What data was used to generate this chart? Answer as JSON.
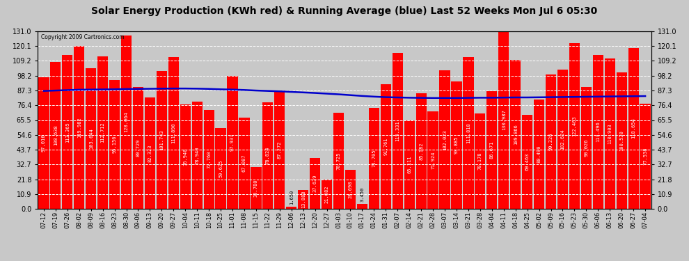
{
  "title": "Solar Energy Production (KWh red) & Running Average (blue) Last 52 Weeks Mon Jul 6 05:30",
  "copyright": "Copyright 2009 Cartronics.com",
  "bar_color": "#ff0000",
  "avg_line_color": "#0000cc",
  "background_color": "#c8c8c8",
  "plot_bg_color": "#c8c8c8",
  "grid_color": "#ffffff",
  "ylim": [
    0,
    131.0
  ],
  "yticks": [
    0.0,
    10.9,
    21.8,
    32.7,
    43.7,
    54.6,
    65.5,
    76.4,
    87.3,
    98.2,
    109.2,
    120.1,
    131.0
  ],
  "categories": [
    "07-12",
    "07-19",
    "07-26",
    "08-02",
    "08-09",
    "08-16",
    "08-23",
    "08-30",
    "09-06",
    "09-13",
    "09-20",
    "09-27",
    "10-04",
    "10-11",
    "10-18",
    "10-25",
    "11-01",
    "11-08",
    "11-15",
    "11-22",
    "11-29",
    "12-06",
    "12-13",
    "12-20",
    "12-27",
    "01-03",
    "01-10",
    "01-17",
    "01-24",
    "01-31",
    "02-07",
    "02-14",
    "02-21",
    "02-28",
    "03-07",
    "03-14",
    "03-21",
    "03-28",
    "04-04",
    "04-11",
    "04-18",
    "04-25",
    "05-02",
    "05-09",
    "05-16",
    "05-23",
    "05-30",
    "06-06",
    "06-13",
    "06-20",
    "06-27",
    "07-04"
  ],
  "values": [
    97.016,
    108.638,
    113.365,
    119.982,
    103.644,
    112.712,
    95.156,
    128.064,
    89.729,
    82.323,
    101.743,
    111.89,
    76.94,
    78.94,
    72.76,
    59.625,
    97.937,
    67.087,
    30.78,
    78.824,
    87.272,
    1.65,
    13.888,
    37.639,
    21.682,
    70.725,
    28.698,
    3.45,
    74.705,
    91.761,
    115.331,
    65.111,
    85.182,
    71.924,
    102.023,
    93.885,
    111.818,
    70.178,
    86.671,
    130.987,
    109.866,
    69.463,
    80.49,
    99.226,
    102.624,
    122.463,
    90.026,
    113.496,
    110.903,
    100.53,
    118.654,
    77.538
  ],
  "running_avg": [
    87.0,
    87.3,
    87.6,
    87.9,
    88.0,
    88.1,
    88.2,
    88.4,
    88.5,
    88.6,
    88.7,
    88.8,
    88.8,
    88.7,
    88.5,
    88.2,
    88.0,
    87.7,
    87.3,
    87.0,
    86.7,
    86.3,
    85.9,
    85.5,
    85.0,
    84.5,
    83.9,
    83.3,
    82.8,
    82.4,
    82.2,
    82.0,
    81.9,
    81.8,
    81.8,
    81.8,
    81.9,
    82.0,
    82.0,
    82.1,
    82.2,
    82.2,
    82.3,
    82.4,
    82.5,
    82.6,
    82.7,
    82.8,
    82.9,
    83.0,
    83.1,
    83.2
  ],
  "title_fontsize": 10,
  "tick_fontsize": 7,
  "label_fontsize": 5
}
